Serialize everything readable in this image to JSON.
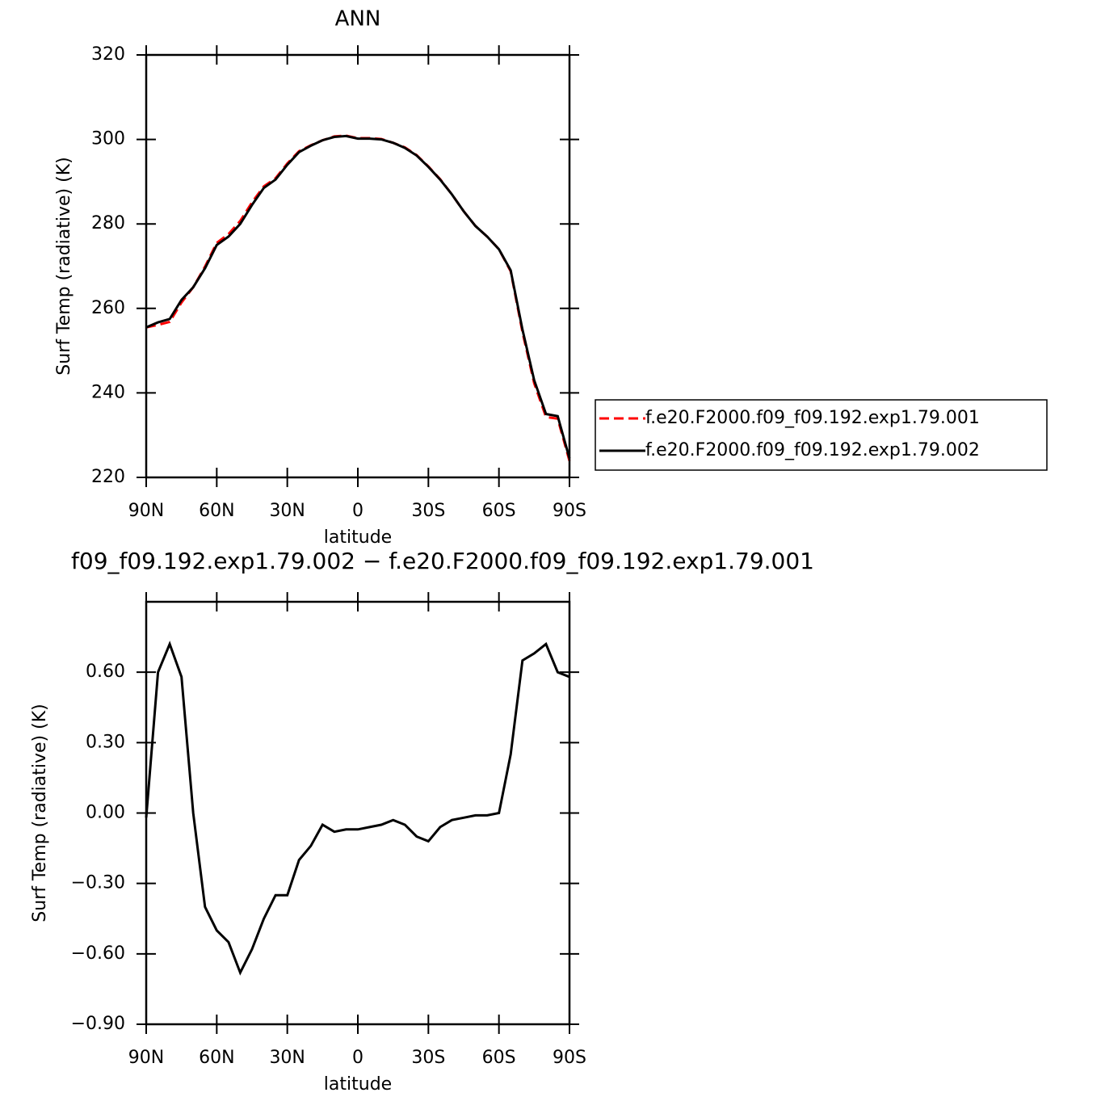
{
  "chart_data": [
    {
      "type": "line",
      "title": "ANN",
      "xlabel": "latitude",
      "ylabel": "Surf Temp (radiative) (K)",
      "x": [
        90,
        85,
        80,
        75,
        70,
        65,
        60,
        55,
        50,
        45,
        40,
        35,
        30,
        25,
        20,
        15,
        10,
        5,
        0,
        -5,
        -10,
        -15,
        -20,
        -25,
        -30,
        -35,
        -40,
        -45,
        -50,
        -55,
        -60,
        -65,
        -70,
        -75,
        -80,
        -85,
        -90
      ],
      "series": [
        {
          "name": "f.e20.F2000.f09_f09.192.exp1.79.001",
          "color": "#ff0000",
          "dash": true,
          "values": [
            255.5,
            256.1,
            256.8,
            261.4,
            265.0,
            269.9,
            275.5,
            277.6,
            280.7,
            285.1,
            288.9,
            290.8,
            294.3,
            297.2,
            298.6,
            299.8,
            300.7,
            300.9,
            300.3,
            300.3,
            300.1,
            299.2,
            298.1,
            296.3,
            293.6,
            290.6,
            287.0,
            283.0,
            279.5,
            277.0,
            274.0,
            268.8,
            254.4,
            242.3,
            234.3,
            233.9,
            223.9
          ]
        },
        {
          "name": "f.e20.F2000.f09_f09.192.exp1.79.002",
          "color": "#000000",
          "dash": false,
          "values": [
            255.5,
            256.7,
            257.5,
            262.0,
            265.0,
            269.5,
            275.0,
            277.0,
            280.0,
            284.5,
            288.5,
            290.5,
            294.0,
            297.0,
            298.5,
            299.8,
            300.6,
            300.8,
            300.2,
            300.2,
            300.0,
            299.2,
            298.0,
            296.2,
            293.5,
            290.5,
            287.0,
            283.0,
            279.5,
            277.0,
            274.0,
            269.0,
            255.0,
            243.0,
            235.0,
            234.5,
            224.5
          ]
        }
      ],
      "xlim": [
        90,
        -90
      ],
      "xticks": [
        {
          "value": 90,
          "label": "90N"
        },
        {
          "value": 60,
          "label": "60N"
        },
        {
          "value": 30,
          "label": "30N"
        },
        0,
        {
          "value": -30,
          "label": "30S"
        },
        {
          "value": -60,
          "label": "60S"
        },
        {
          "value": -90,
          "label": "90S"
        }
      ],
      "ylim": [
        220,
        320
      ],
      "yticks": [
        220,
        240,
        260,
        280,
        300,
        320
      ]
    },
    {
      "type": "line",
      "title": "f09_f09.192.exp1.79.002 − f.e20.F2000.f09_f09.192.exp1.79.001",
      "xlabel": "latitude",
      "ylabel": "Surf Temp (radiative) (K)",
      "x": [
        90,
        85,
        80,
        75,
        70,
        65,
        60,
        55,
        50,
        45,
        40,
        35,
        30,
        25,
        20,
        15,
        10,
        5,
        0,
        -5,
        -10,
        -15,
        -20,
        -25,
        -30,
        -35,
        -40,
        -45,
        -50,
        -55,
        -60,
        -65,
        -70,
        -75,
        -80,
        -85,
        -90
      ],
      "series": [
        {
          "color": "#000000",
          "dash": false,
          "values": [
            -0.02,
            0.6,
            0.72,
            0.58,
            0.0,
            -0.4,
            -0.5,
            -0.55,
            -0.68,
            -0.58,
            -0.45,
            -0.35,
            -0.35,
            -0.2,
            -0.14,
            -0.05,
            -0.08,
            -0.07,
            -0.07,
            -0.06,
            -0.05,
            -0.03,
            -0.05,
            -0.1,
            -0.12,
            -0.06,
            -0.03,
            -0.02,
            -0.01,
            -0.01,
            0.0,
            0.25,
            0.65,
            0.68,
            0.72,
            0.6,
            0.58
          ]
        }
      ],
      "xlim": [
        90,
        -90
      ],
      "xticks": [
        {
          "value": 90,
          "label": "90N"
        },
        {
          "value": 60,
          "label": "60N"
        },
        {
          "value": 30,
          "label": "30N"
        },
        0,
        {
          "value": -30,
          "label": "30S"
        },
        {
          "value": -60,
          "label": "60S"
        },
        {
          "value": -90,
          "label": "90S"
        }
      ],
      "ylim": [
        -0.9,
        0.9
      ],
      "yticks": [
        {
          "value": -0.9,
          "label": "−0.90"
        },
        {
          "value": -0.6,
          "label": "−0.60"
        },
        {
          "value": -0.3,
          "label": "−0.30"
        },
        {
          "value": 0,
          "label": "0.00"
        },
        {
          "value": 0.3,
          "label": "0.30"
        },
        {
          "value": 0.6,
          "label": "0.60"
        }
      ]
    }
  ]
}
